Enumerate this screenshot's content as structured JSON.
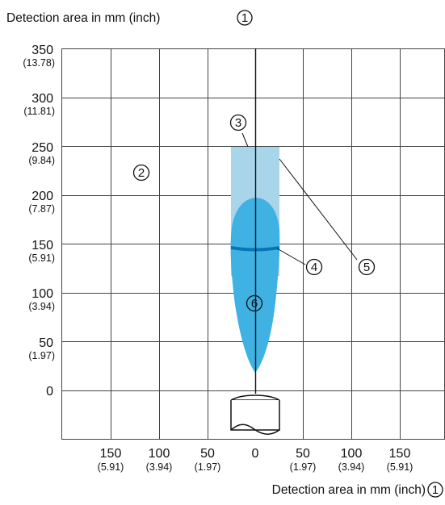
{
  "top_label": "Detection area in mm (inch)",
  "bottom_label": "Detection area in mm (inch)",
  "callouts": {
    "axis": "1",
    "area": "2",
    "field_top": "3",
    "field_mid": "4",
    "field_edge": "5",
    "field_core": "6"
  },
  "y_ticks": [
    {
      "mm": "350",
      "inch": "(13.78)"
    },
    {
      "mm": "300",
      "inch": "(11.81)"
    },
    {
      "mm": "250",
      "inch": "(9.84)"
    },
    {
      "mm": "200",
      "inch": "(7.87)"
    },
    {
      "mm": "150",
      "inch": "(5.91)"
    },
    {
      "mm": "100",
      "inch": "(3.94)"
    },
    {
      "mm": "50",
      "inch": "(1.97)"
    },
    {
      "mm": "0",
      "inch": ""
    }
  ],
  "x_ticks": [
    {
      "mm": "150",
      "inch": "(5.91)"
    },
    {
      "mm": "100",
      "inch": "(3.94)"
    },
    {
      "mm": "50",
      "inch": "(1.97)"
    },
    {
      "mm": "0",
      "inch": ""
    },
    {
      "mm": "50",
      "inch": "(1.97)"
    },
    {
      "mm": "100",
      "inch": "(3.94)"
    },
    {
      "mm": "150",
      "inch": "(5.91)"
    }
  ],
  "colors": {
    "grid": "#444444",
    "light_field": "#a9d5ea",
    "core_field": "#3fb1e2",
    "band": "#0a74b6",
    "axis": "#111111"
  }
}
